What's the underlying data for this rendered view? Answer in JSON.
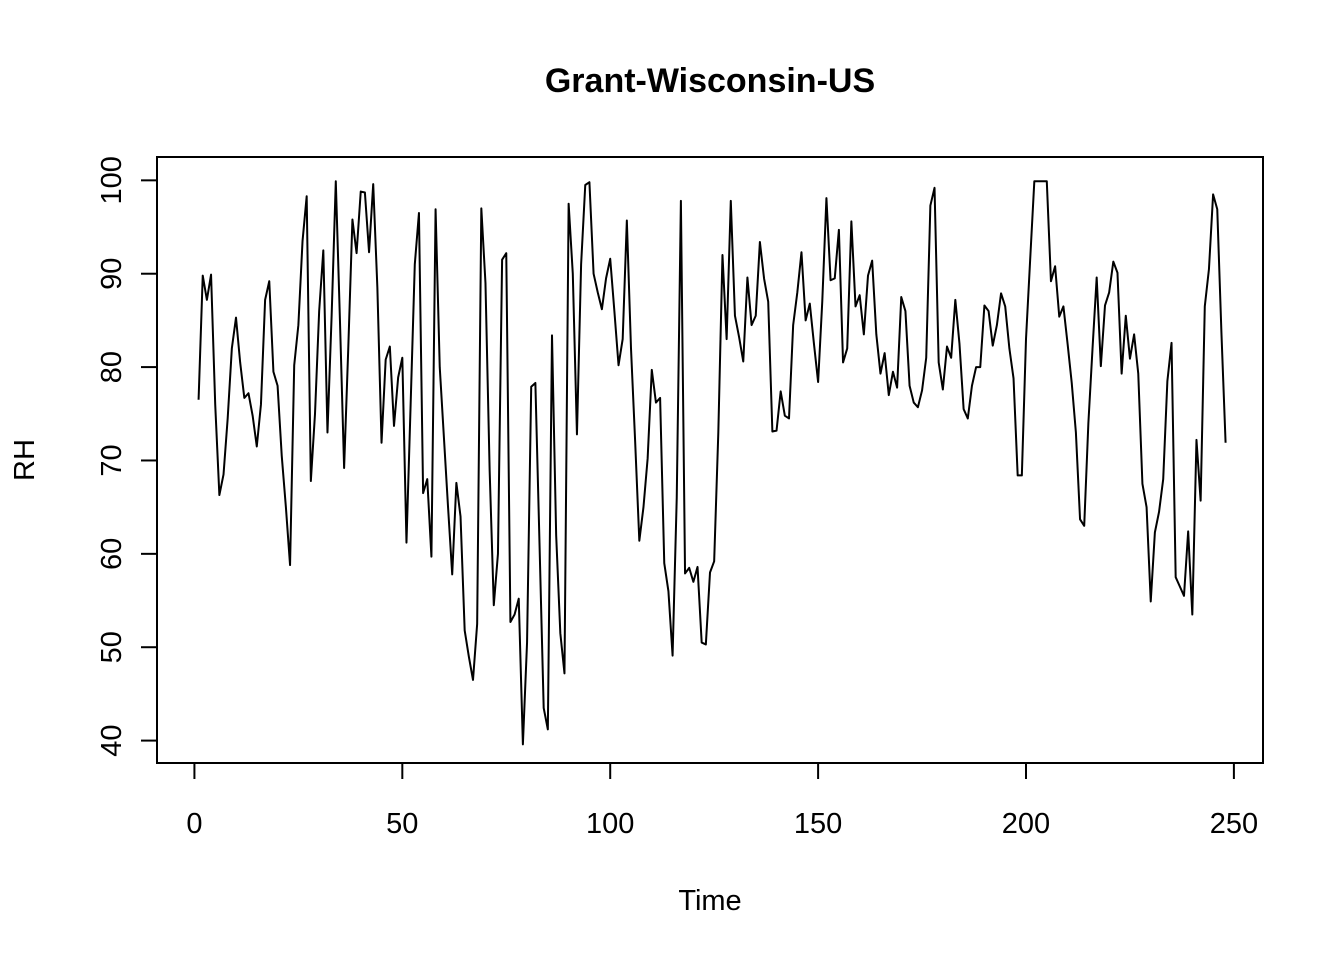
{
  "chart_data": {
    "type": "line",
    "title": "Grant-Wisconsin-US",
    "xlabel": "Time",
    "ylabel": "RH",
    "xlim": [
      -9,
      257
    ],
    "ylim": [
      37.6,
      102.5
    ],
    "x_ticks": [
      0,
      50,
      100,
      150,
      200,
      250
    ],
    "y_ticks": [
      40,
      50,
      60,
      70,
      80,
      90,
      100
    ],
    "grid": false,
    "legend": "none",
    "series": [
      {
        "x_start": 1,
        "x_step": 1,
        "values": [
          76.5,
          89.8,
          87.2,
          89.9,
          76.0,
          66.3,
          68.5,
          74.5,
          82.0,
          85.3,
          80.5,
          76.7,
          77.2,
          74.8,
          71.5,
          76.0,
          87.2,
          89.2,
          79.5,
          78.0,
          70.5,
          65.0,
          58.8,
          80.2,
          84.5,
          93.5,
          98.3,
          67.8,
          75.0,
          86.0,
          92.5,
          73.0,
          85.5,
          99.9,
          85.0,
          69.2,
          82.0,
          95.8,
          92.2,
          98.8,
          98.7,
          92.3,
          99.6,
          88.5,
          71.9,
          80.8,
          82.2,
          73.7,
          78.9,
          81.0,
          61.2,
          76.0,
          91.0,
          96.5,
          66.5,
          68.0,
          59.7,
          96.9,
          80.0,
          72.5,
          65.0,
          57.8,
          67.6,
          64.0,
          51.8,
          49.0,
          46.5,
          52.5,
          97.0,
          89.0,
          69.0,
          54.5,
          60.0,
          91.5,
          92.2,
          52.7,
          53.5,
          55.2,
          39.6,
          50.5,
          77.9,
          78.3,
          61.0,
          43.5,
          41.2,
          83.4,
          62.0,
          51.5,
          47.2,
          97.5,
          90.0,
          72.8,
          91.0,
          99.5,
          99.8,
          90.0,
          88.0,
          86.2,
          89.5,
          91.6,
          86.0,
          80.2,
          83.0,
          95.7,
          82.0,
          72.0,
          61.4,
          65.0,
          70.2,
          79.7,
          76.2,
          76.7,
          59.0,
          56.0,
          49.1,
          66.0,
          97.8,
          57.9,
          58.5,
          57.0,
          58.6,
          50.5,
          50.3,
          58.0,
          59.2,
          73.0,
          92.0,
          83.0,
          97.8,
          85.5,
          83.2,
          80.6,
          89.6,
          84.5,
          85.5,
          93.4,
          89.5,
          87.0,
          73.1,
          73.2,
          77.4,
          74.8,
          74.5,
          84.5,
          88.0,
          92.3,
          85.0,
          86.8,
          82.5,
          78.4,
          87.0,
          98.1,
          89.3,
          89.5,
          94.7,
          80.5,
          82.0,
          95.6,
          86.5,
          87.7,
          83.5,
          89.8,
          91.4,
          83.5,
          79.3,
          81.5,
          77.0,
          79.5,
          77.8,
          87.5,
          86.0,
          78.0,
          76.2,
          75.7,
          77.5,
          81.0,
          97.3,
          99.2,
          80.5,
          77.6,
          82.2,
          81.0,
          87.2,
          82.5,
          75.5,
          74.5,
          78.0,
          80.0,
          80.0,
          86.6,
          86.0,
          82.3,
          84.5,
          87.9,
          86.5,
          82.0,
          78.8,
          68.4,
          68.4,
          83.0,
          91.5,
          99.9,
          99.9,
          99.9,
          99.9,
          89.2,
          90.8,
          85.4,
          86.5,
          82.5,
          78.3,
          73.0,
          63.7,
          63.0,
          74.0,
          82.0,
          89.6,
          80.1,
          86.6,
          88.0,
          91.3,
          90.1,
          79.3,
          85.5,
          80.9,
          83.5,
          79.3,
          67.5,
          65.0,
          54.9,
          62.3,
          64.5,
          68.0,
          78.5,
          82.6,
          57.5,
          56.5,
          55.5,
          62.4,
          53.5,
          72.2,
          65.7,
          86.5,
          90.5,
          98.5,
          96.9,
          83.7,
          71.9
        ]
      }
    ]
  }
}
